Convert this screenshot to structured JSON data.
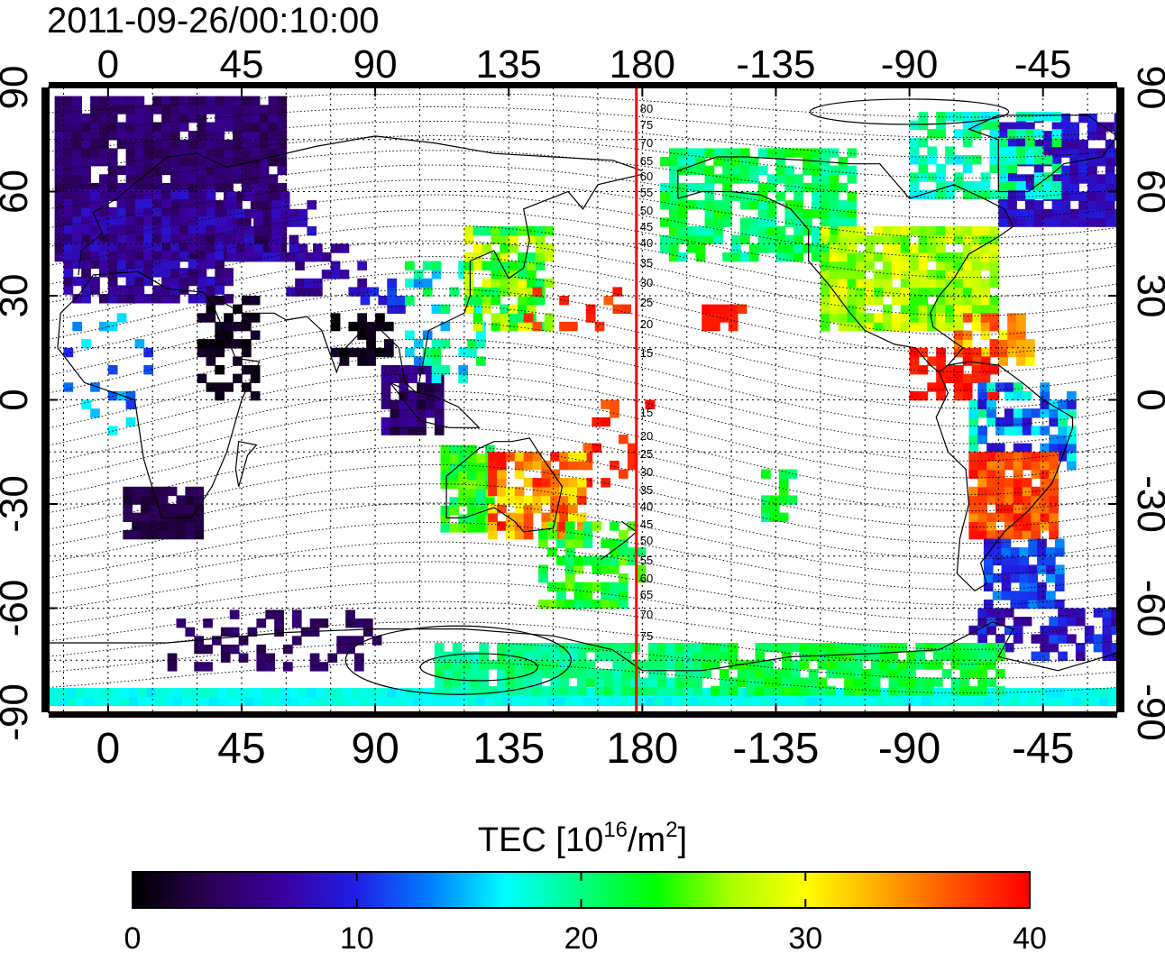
{
  "timestamp": "2011-09-26/00:10:00",
  "map": {
    "lon_ticks": [
      "0",
      "45",
      "90",
      "135",
      "180",
      "-135",
      "-90",
      "-45"
    ],
    "lat_ticks": [
      "90",
      "60",
      "30",
      "0",
      "-30",
      "-60",
      "-90"
    ],
    "lon_range": [
      -20,
      340
    ],
    "lat_range": [
      -90,
      90
    ],
    "terminator_longitude": 178,
    "contour_labels": [
      "80",
      "75",
      "70",
      "65",
      "60",
      "55",
      "50",
      "45",
      "40",
      "35",
      "30",
      "25",
      "20",
      "15",
      "15",
      "20",
      "25",
      "30",
      "35",
      "40",
      "45",
      "50",
      "55",
      "60",
      "65",
      "70",
      "75"
    ],
    "terminator_color": "#ff0000"
  },
  "colorbar": {
    "title_prefix": "TEC  [10",
    "title_exp": "16",
    "title_mid": "/m",
    "title_exp2": "2",
    "title_suffix": "]",
    "tick_labels": [
      "0",
      "10",
      "20",
      "30",
      "40"
    ],
    "min": 0,
    "max": 40,
    "colors": [
      "#000000",
      "#2a0052",
      "#3a00a0",
      "#1f1fe6",
      "#0080ff",
      "#00ffff",
      "#00ff80",
      "#00ff00",
      "#aaff00",
      "#ffff00",
      "#ffaa00",
      "#ff5000",
      "#ff0000"
    ]
  }
}
